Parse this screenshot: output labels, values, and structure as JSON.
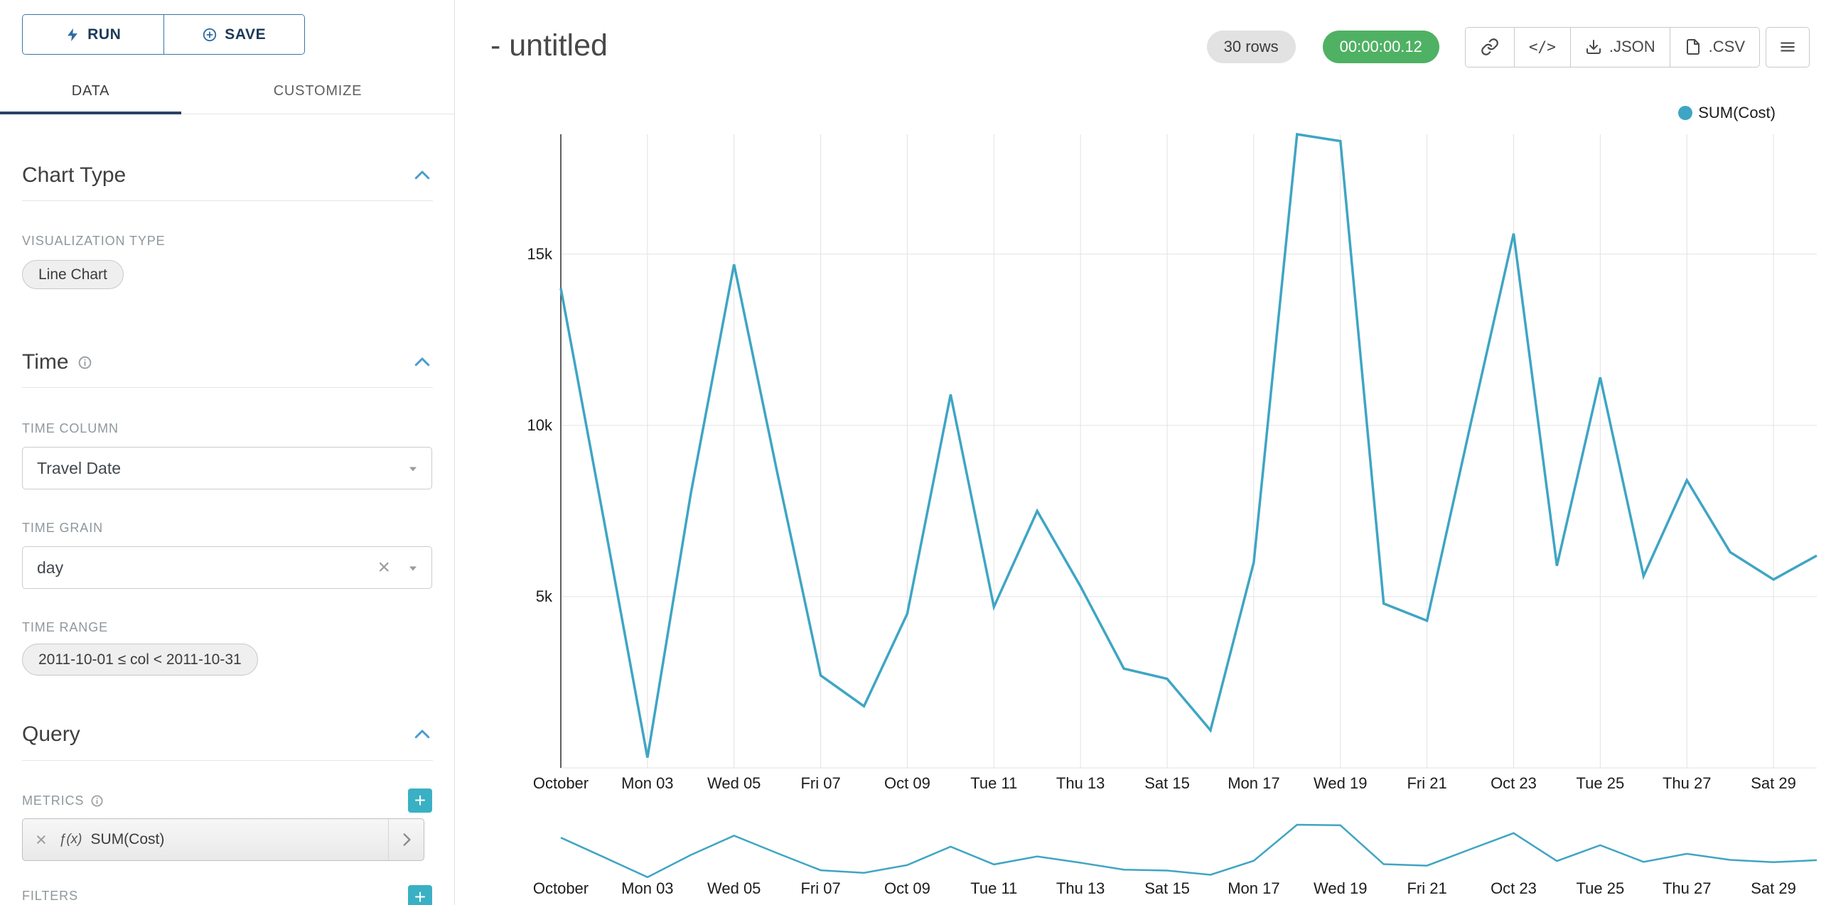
{
  "colors": {
    "line": "#3fa5c4",
    "navy": "#2b4263",
    "btn_border": "#3675a8",
    "btn_text": "#1b3a57",
    "btn_icon": "#2d6ca3",
    "accent_chevron": "#4a9bd1",
    "plus_button": "#3ab0c4",
    "timer_bg": "#4fb163",
    "grid": "#e2e2e2",
    "axis": "#2b2b2b"
  },
  "sidebar": {
    "run_label": "RUN",
    "save_label": "SAVE",
    "tabs": [
      {
        "label": "DATA"
      },
      {
        "label": "CUSTOMIZE"
      }
    ],
    "chart_type_section": {
      "title": "Chart Type",
      "viz_label": "VISUALIZATION TYPE",
      "viz_value": "Line Chart"
    },
    "time_section": {
      "title": "Time",
      "column_label": "TIME COLUMN",
      "column_value": "Travel Date",
      "grain_label": "TIME GRAIN",
      "grain_value": "day",
      "range_label": "TIME RANGE",
      "range_value": "2011-10-01 ≤ col < 2011-10-31"
    },
    "query_section": {
      "title": "Query",
      "metrics_label": "METRICS",
      "metric_fx": "ƒ(x)",
      "metric_value": "SUM(Cost)",
      "filters_label": "FILTERS"
    }
  },
  "header": {
    "title": "- untitled",
    "rows_badge": "30 rows",
    "timer_badge": "00:00:00.12",
    "code_button": "</>",
    "json_button": ".JSON",
    "csv_button": ".CSV"
  },
  "legend": {
    "label": "SUM(Cost)"
  },
  "chart_data": {
    "type": "line",
    "title": "- untitled",
    "xlabel": "",
    "ylabel": "",
    "grid": true,
    "legend_position": "top-right",
    "focus_chart": true,
    "x": [
      "2011-10-01",
      "2011-10-02",
      "2011-10-03",
      "2011-10-04",
      "2011-10-05",
      "2011-10-06",
      "2011-10-07",
      "2011-10-08",
      "2011-10-09",
      "2011-10-10",
      "2011-10-11",
      "2011-10-12",
      "2011-10-13",
      "2011-10-14",
      "2011-10-15",
      "2011-10-16",
      "2011-10-17",
      "2011-10-18",
      "2011-10-19",
      "2011-10-20",
      "2011-10-21",
      "2011-10-22",
      "2011-10-23",
      "2011-10-24",
      "2011-10-25",
      "2011-10-26",
      "2011-10-27",
      "2011-10-28",
      "2011-10-29",
      "2011-10-30"
    ],
    "series": [
      {
        "name": "SUM(Cost)",
        "values": [
          14000,
          7200,
          300,
          8000,
          14700,
          8600,
          2700,
          1800,
          4500,
          10900,
          4700,
          7500,
          5300,
          2900,
          2600,
          1100,
          6000,
          18500,
          18300,
          4800,
          4300,
          10000,
          15600,
          5900,
          11400,
          5600,
          8400,
          6300,
          5500,
          6200
        ]
      }
    ],
    "ylim": [
      0,
      18500
    ],
    "yticks": [
      {
        "value": 5000,
        "label": "5k"
      },
      {
        "value": 10000,
        "label": "10k"
      },
      {
        "value": 15000,
        "label": "15k"
      }
    ],
    "xticks": [
      {
        "index": 0,
        "label": "October"
      },
      {
        "index": 2,
        "label": "Mon 03"
      },
      {
        "index": 4,
        "label": "Wed 05"
      },
      {
        "index": 6,
        "label": "Fri 07"
      },
      {
        "index": 8,
        "label": "Oct 09"
      },
      {
        "index": 10,
        "label": "Tue 11"
      },
      {
        "index": 12,
        "label": "Thu 13"
      },
      {
        "index": 14,
        "label": "Sat 15"
      },
      {
        "index": 16,
        "label": "Mon 17"
      },
      {
        "index": 18,
        "label": "Wed 19"
      },
      {
        "index": 20,
        "label": "Fri 21"
      },
      {
        "index": 22,
        "label": "Oct 23"
      },
      {
        "index": 24,
        "label": "Tue 25"
      },
      {
        "index": 26,
        "label": "Thu 27"
      },
      {
        "index": 28,
        "label": "Sat 29"
      }
    ]
  }
}
